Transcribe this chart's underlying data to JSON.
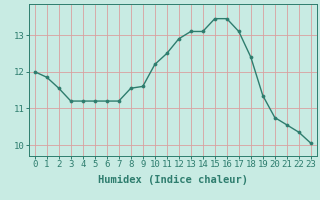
{
  "x": [
    0,
    1,
    2,
    3,
    4,
    5,
    6,
    7,
    8,
    9,
    10,
    11,
    12,
    13,
    14,
    15,
    16,
    17,
    18,
    19,
    20,
    21,
    22,
    23
  ],
  "y": [
    12.0,
    11.85,
    11.55,
    11.2,
    11.2,
    11.2,
    11.2,
    11.2,
    11.55,
    11.6,
    12.2,
    12.5,
    12.9,
    13.1,
    13.1,
    13.45,
    13.45,
    13.1,
    12.4,
    11.35,
    10.75,
    10.55,
    10.35,
    10.05
  ],
  "line_color": "#2e7d6e",
  "bg_color": "#c8ebe3",
  "grid_color_h": "#d9a0a0",
  "grid_color_v": "#d9a0a0",
  "xlabel": "Humidex (Indice chaleur)",
  "xlabel_fontsize": 7.5,
  "tick_fontsize": 6.5,
  "ylim": [
    9.7,
    13.85
  ],
  "yticks": [
    10,
    11,
    12,
    13
  ],
  "xticks": [
    0,
    1,
    2,
    3,
    4,
    5,
    6,
    7,
    8,
    9,
    10,
    11,
    12,
    13,
    14,
    15,
    16,
    17,
    18,
    19,
    20,
    21,
    22,
    23
  ]
}
